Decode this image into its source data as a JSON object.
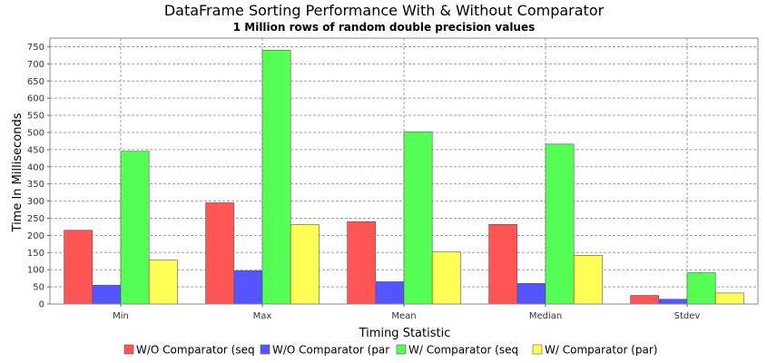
{
  "chart_data": {
    "type": "bar",
    "title": "DataFrame Sorting Performance With & Without Comparator",
    "subtitle": "1 Million rows of random double precision values",
    "xlabel": "Timing Statistic",
    "ylabel": "Time In Milliseconds",
    "categories": [
      "Min",
      "Max",
      "Mean",
      "Median",
      "Stdev"
    ],
    "ylim": [
      0,
      775
    ],
    "yticks": [
      0,
      50,
      100,
      150,
      200,
      250,
      300,
      350,
      400,
      450,
      500,
      550,
      600,
      650,
      700,
      750
    ],
    "grid": true,
    "legend_position": "bottom",
    "series": [
      {
        "name": "W/O Comparator (seq",
        "color": "#ff5555",
        "values": [
          215,
          295,
          240,
          232,
          25
        ]
      },
      {
        "name": "W/O Comparator (par",
        "color": "#5555ff",
        "values": [
          55,
          97,
          65,
          60,
          14
        ]
      },
      {
        "name": "W/ Comparator (seq",
        "color": "#55ff55",
        "values": [
          445,
          740,
          502,
          466,
          91
        ]
      },
      {
        "name": "W/ Comparator (par)",
        "color": "#ffff55",
        "values": [
          128,
          232,
          152,
          142,
          32
        ]
      }
    ]
  }
}
